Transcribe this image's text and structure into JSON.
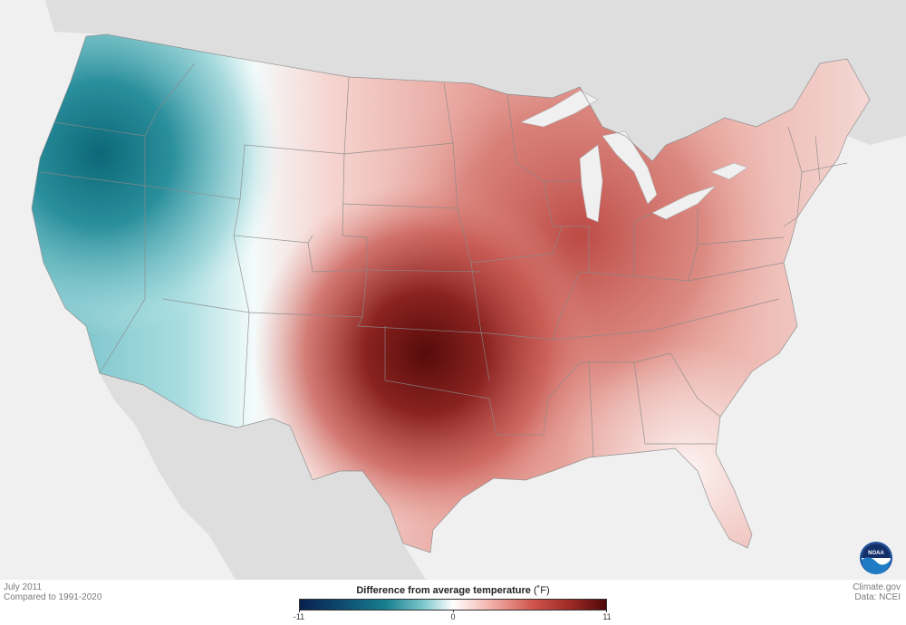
{
  "map": {
    "credit": "Climate.gov",
    "source": "Data: NCEI",
    "date": "July 2011",
    "baseline": "Compared to 1991-2020",
    "logo_icon": "noaa-logo",
    "logo_text": "NOAA"
  },
  "legend": {
    "title": "Difference from average temperature",
    "unit": "(˚F)",
    "min_label": "-11",
    "mid_label": "0",
    "max_label": "11",
    "range": [
      -11,
      11
    ],
    "colors": [
      "#08204e",
      "#177f8f",
      "#ffffff",
      "#d0554e",
      "#4f0808"
    ]
  },
  "colors": {
    "background_land": "#dedede",
    "water": "#f0f0f0",
    "state_borders": "#8a8a8a"
  }
}
